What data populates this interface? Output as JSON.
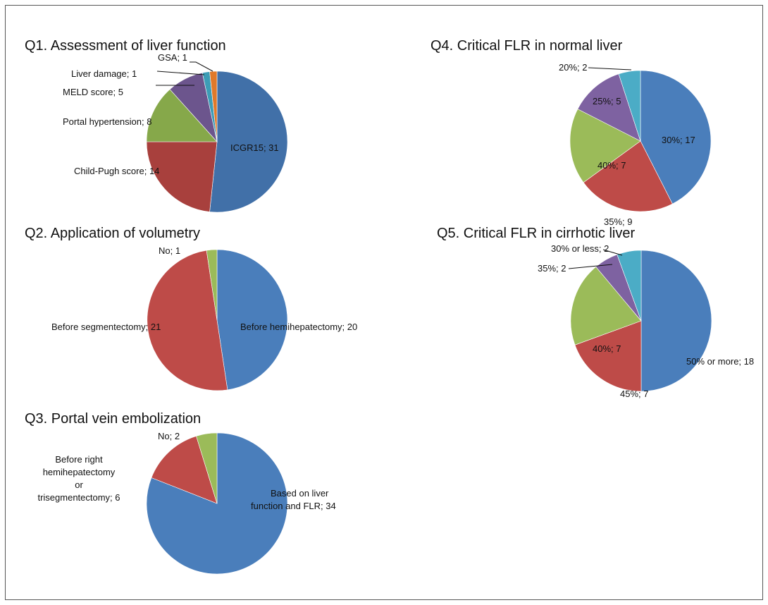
{
  "chart_data": [
    {
      "type": "pie",
      "title": "Q1. Assessment of liver function",
      "slices": [
        {
          "label": "ICGR15; 31",
          "value": 31,
          "color": "#4170a8"
        },
        {
          "label": "Child-Pugh score; 14",
          "value": 14,
          "color": "#a8403d"
        },
        {
          "label": "Portal hypertension; 8",
          "value": 8,
          "color": "#86a84a"
        },
        {
          "label": "MELD score; 5",
          "value": 5,
          "color": "#6c558d"
        },
        {
          "label": "Liver damage; 1",
          "value": 1,
          "color": "#3d9cb6"
        },
        {
          "label": "GSA; 1",
          "value": 1,
          "color": "#e0792a"
        }
      ]
    },
    {
      "type": "pie",
      "title": "Q2. Application of volumetry",
      "slices": [
        {
          "label": "Before hemihepatectomy; 20",
          "value": 20,
          "color": "#4a7ebb"
        },
        {
          "label": "Before segmentectomy; 21",
          "value": 21,
          "color": "#be4b48"
        },
        {
          "label": "No; 1",
          "value": 1,
          "color": "#9bbb59"
        }
      ]
    },
    {
      "type": "pie",
      "title": "Q3. Portal vein embolization",
      "slices": [
        {
          "label": "Based on liver function and FLR; 34",
          "value": 34,
          "color": "#4a7ebb"
        },
        {
          "label": "Before right hemihepatectomy or trisegmentectomy; 6",
          "value": 6,
          "color": "#be4b48"
        },
        {
          "label": "No; 2",
          "value": 2,
          "color": "#9bbb59"
        }
      ]
    },
    {
      "type": "pie",
      "title": "Q4. Critical FLR in normal liver",
      "slices": [
        {
          "label": "30%; 17",
          "value": 17,
          "color": "#4a7ebb"
        },
        {
          "label": "35%; 9",
          "value": 9,
          "color": "#be4b48"
        },
        {
          "label": "40%; 7",
          "value": 7,
          "color": "#9bbb59"
        },
        {
          "label": "25%; 5",
          "value": 5,
          "color": "#7e62a1"
        },
        {
          "label": "20%; 2",
          "value": 2,
          "color": "#4bacc6"
        }
      ]
    },
    {
      "type": "pie",
      "title": "Q5. Critical FLR in cirrhotic liver",
      "slices": [
        {
          "label": "50% or more; 18",
          "value": 18,
          "color": "#4a7ebb"
        },
        {
          "label": "45%; 7",
          "value": 7,
          "color": "#be4b48"
        },
        {
          "label": "40%; 7",
          "value": 7,
          "color": "#9bbb59"
        },
        {
          "label": "35%; 2",
          "value": 2,
          "color": "#7e62a1"
        },
        {
          "label": "30% or less; 2",
          "value": 2,
          "color": "#4bacc6"
        }
      ]
    }
  ]
}
